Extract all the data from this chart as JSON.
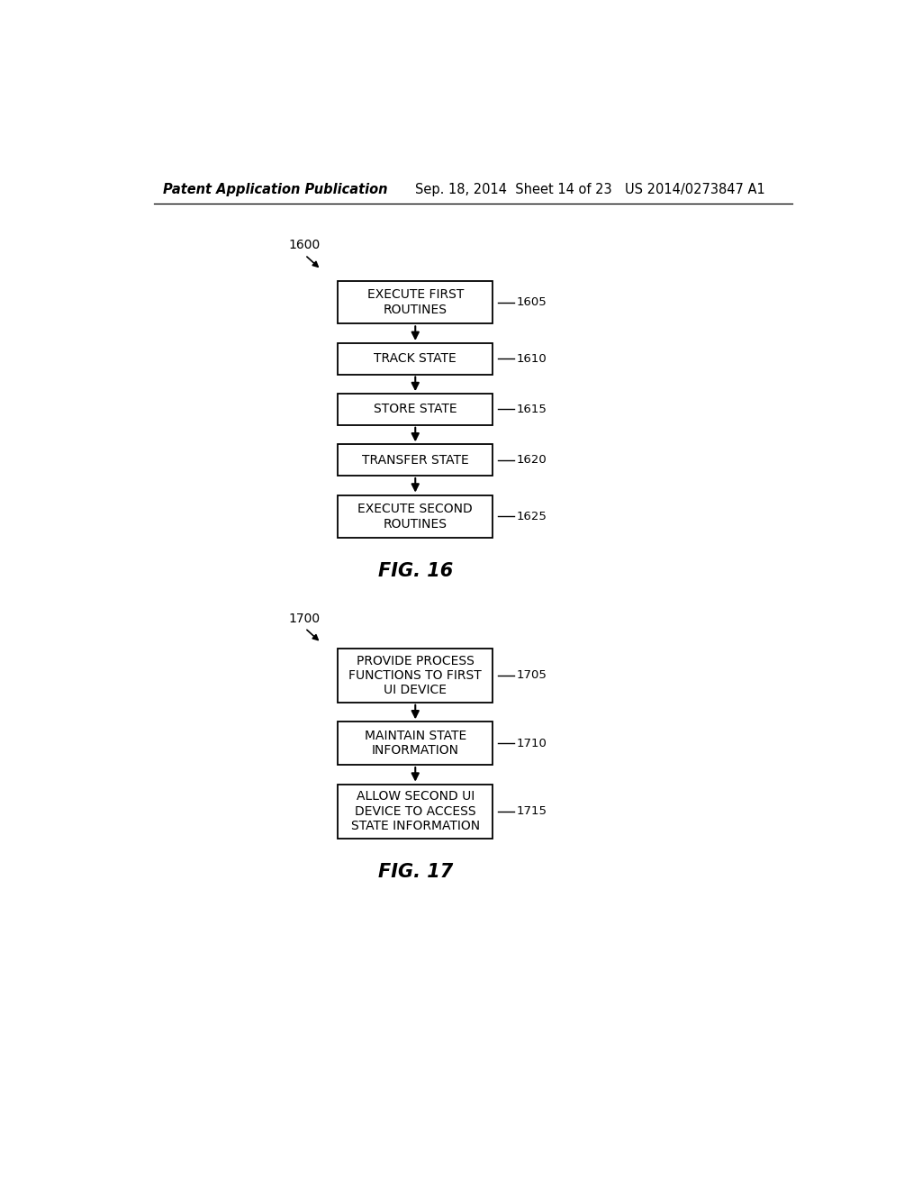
{
  "background_color": "#ffffff",
  "header_left": "Patent Application Publication",
  "header_mid": "Sep. 18, 2014  Sheet 14 of 23",
  "header_right": "US 2014/0273847 A1",
  "text_color": "#000000",
  "box_edge_color": "#000000",
  "arrow_color": "#000000",
  "fig16": {
    "diagram_label": "1600",
    "caption": "FIG. 16",
    "boxes": [
      {
        "label": "EXECUTE FIRST\nROUTINES",
        "ref": "1605"
      },
      {
        "label": "TRACK STATE",
        "ref": "1610"
      },
      {
        "label": "STORE STATE",
        "ref": "1615"
      },
      {
        "label": "TRANSFER STATE",
        "ref": "1620"
      },
      {
        "label": "EXECUTE SECOND\nROUTINES",
        "ref": "1625"
      }
    ]
  },
  "fig17": {
    "diagram_label": "1700",
    "caption": "FIG. 17",
    "boxes": [
      {
        "label": "PROVIDE PROCESS\nFUNCTIONS TO FIRST\nUI DEVICE",
        "ref": "1705"
      },
      {
        "label": "MAINTAIN STATE\nINFORMATION",
        "ref": "1710"
      },
      {
        "label": "ALLOW SECOND UI\nDEVICE TO ACCESS\nSTATE INFORMATION",
        "ref": "1715"
      }
    ]
  }
}
